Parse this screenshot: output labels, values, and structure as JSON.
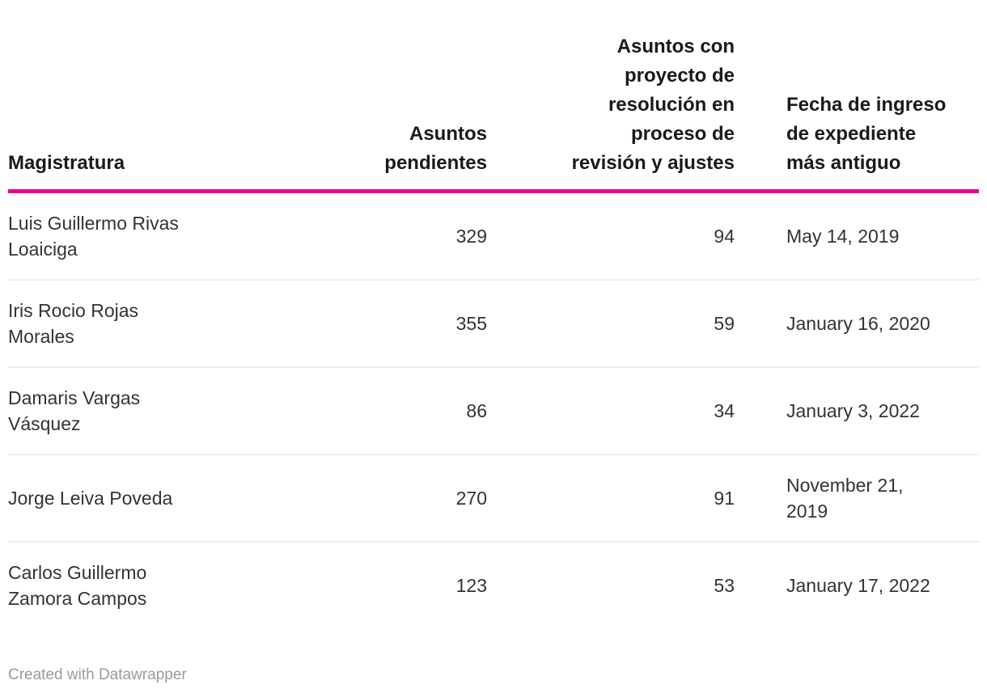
{
  "chart_data": {
    "type": "table",
    "columns": [
      "Magistratura",
      "Asuntos pendientes",
      "Asuntos con proyecto de resolución en proceso de revisión y ajustes",
      "Fecha de ingreso de expediente más antiguo"
    ],
    "rows": [
      [
        "Luis Guillermo Rivas Loaiciga",
        "329",
        "94",
        "May 14, 2019"
      ],
      [
        "Iris Rocio Rojas Morales",
        "355",
        "59",
        "January 16, 2020"
      ],
      [
        "Damaris Vargas Vásquez",
        "86",
        "34",
        "January 3, 2022"
      ],
      [
        "Jorge Leiva Poveda",
        "270",
        "91",
        "November 21, 2019"
      ],
      [
        "Carlos Guillermo Zamora Campos",
        "123",
        "53",
        "January 17, 2022"
      ]
    ],
    "layout": {
      "column_alignments": [
        "left",
        "right",
        "right",
        "left"
      ],
      "header_rule_color": "#EC008C",
      "row_divider_color": "#eeeeee"
    }
  },
  "footer": {
    "attribution": "Created with Datawrapper"
  },
  "colors": {
    "header_rule": "#EC008C",
    "row_divider": "#eeeeee",
    "header_text": "#1a1a1a",
    "body_text": "#333333",
    "footer_text": "#9b9b9b"
  }
}
